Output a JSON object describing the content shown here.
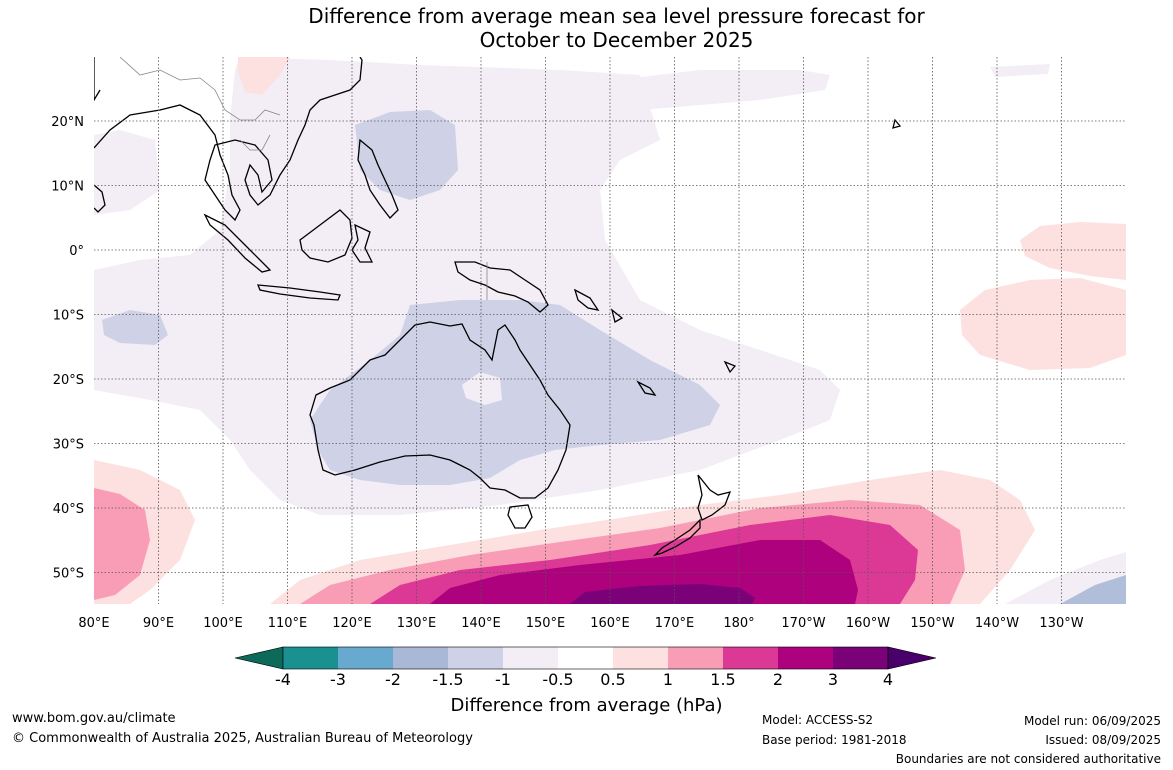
{
  "title": {
    "line1": "Difference from average mean sea level pressure forecast for",
    "line2": "October to December 2025"
  },
  "map": {
    "lat_labels": [
      "20°N",
      "10°N",
      "0°",
      "10°S",
      "20°S",
      "30°S",
      "40°S",
      "50°S"
    ],
    "lon_labels": [
      "80°E",
      "90°E",
      "100°E",
      "110°E",
      "120°E",
      "130°E",
      "140°E",
      "150°E",
      "160°E",
      "170°E",
      "180°",
      "170°W",
      "160°W",
      "150°W",
      "140°W",
      "130°W"
    ],
    "region": "Indo-Pacific",
    "colors": {
      "land_outline": "#000000",
      "grid": "#555555"
    }
  },
  "colorbar": {
    "labels": [
      "-4",
      "-3",
      "-2",
      "-1.5",
      "-1",
      "-0.5",
      "0.5",
      "1",
      "1.5",
      "2",
      "3",
      "4"
    ],
    "colors": [
      "#0d6a5a",
      "#1a9090",
      "#67a9cf",
      "#a8b8d6",
      "#cfd2e6",
      "#f3edf6",
      "#ffffff",
      "#fde0e0",
      "#f99db6",
      "#dc3996",
      "#ae017e",
      "#7a0177",
      "#49006a"
    ],
    "title": "Difference from average (hPa)"
  },
  "footer": {
    "website": "www.bom.gov.au/climate",
    "copyright": "© Commonwealth of Australia 2025, Australian Bureau of Meteorology",
    "model": "Model: ACCESS-S2",
    "base_period": "Base period: 1981-2018",
    "model_run": "Model run: 06/09/2025",
    "issued": "Issued: 08/09/2025",
    "disclaimer": "Boundaries are not considered authoritative"
  }
}
